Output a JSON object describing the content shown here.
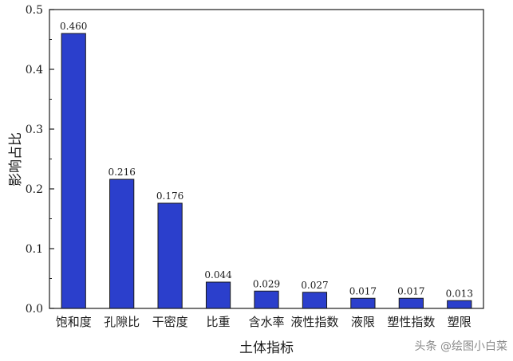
{
  "chart_data": {
    "type": "bar",
    "categories": [
      "饱和度",
      "孔隙比",
      "干密度",
      "比重",
      "含水率",
      "液性指数",
      "液限",
      "塑性指数",
      "塑限"
    ],
    "values": [
      0.46,
      0.216,
      0.176,
      0.044,
      0.029,
      0.027,
      0.017,
      0.017,
      0.013
    ],
    "data_labels": [
      "0.460",
      "0.216",
      "0.176",
      "0.044",
      "0.029",
      "0.027",
      "0.017",
      "0.017",
      "0.013"
    ],
    "xlabel": "土体指标",
    "ylabel": "影响占比",
    "ylim": [
      0,
      0.5
    ],
    "yticks": [
      0.0,
      0.1,
      0.2,
      0.3,
      0.4,
      0.5
    ],
    "ytick_labels": [
      "0.0",
      "0.1",
      "0.2",
      "0.3",
      "0.4",
      "0.5"
    ],
    "grid": false,
    "bar_color": "#2b3fcc",
    "bar_edge_color": "#1a1a1a"
  },
  "watermark": "头条 @绘图小白菜"
}
